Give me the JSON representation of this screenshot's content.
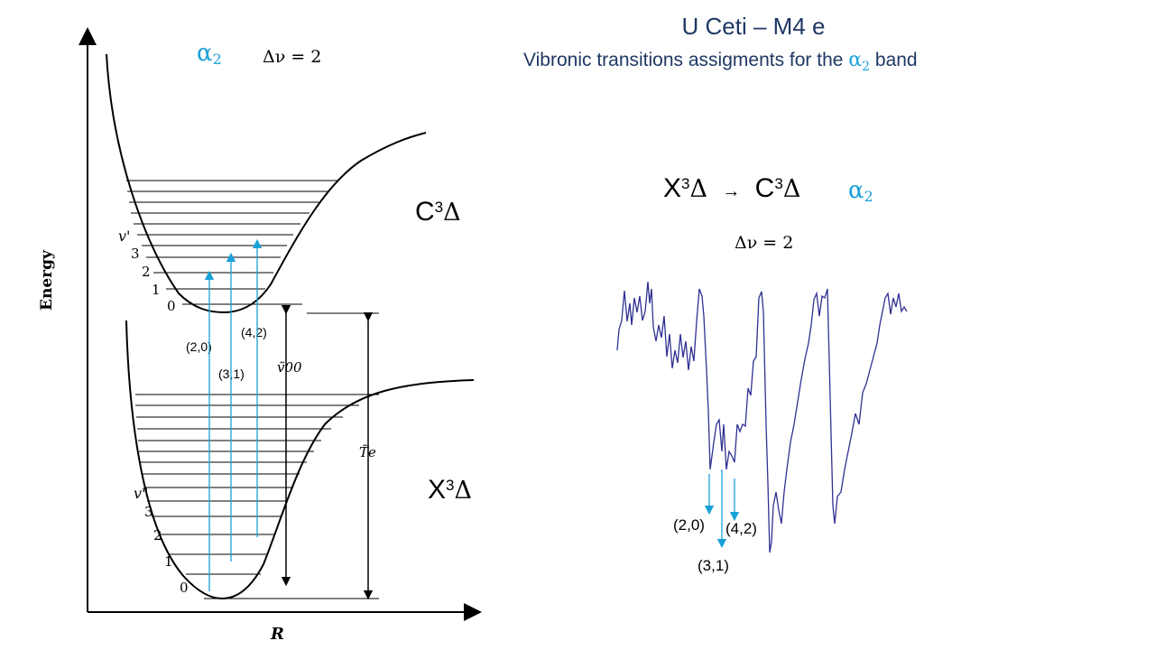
{
  "header": {
    "title": "U Ceti – M4 e",
    "subtitle_pre": "Vibronic transitions assigments for the ",
    "subtitle_alpha": "α",
    "subtitle_sub": "2",
    "subtitle_post": " band"
  },
  "left_diagram": {
    "alpha": "α",
    "alpha_sub": "2",
    "delta_v": "Δν = 2",
    "upper_state": {
      "letter": "C",
      "sup": "3",
      "delta": "Δ"
    },
    "lower_state": {
      "letter": "X",
      "sup": "3",
      "delta": "Δ"
    },
    "y_axis_label": "Energy",
    "x_axis_label": "R",
    "upper_v_label": "v'",
    "lower_v_label": "v\"",
    "upper_levels": [
      "3",
      "2",
      "1",
      "0"
    ],
    "lower_levels": [
      "3",
      "2",
      "1",
      "0"
    ],
    "v00_label": "ṽ00",
    "te_label": "T̃e",
    "transitions": [
      "(2,0)",
      "(3,1)",
      "(4,2)"
    ]
  },
  "right_panel": {
    "band_lower": {
      "letter": "X",
      "sup": "3",
      "delta": "Δ"
    },
    "arrow": "→",
    "band_upper": {
      "letter": "C",
      "sup": "3",
      "delta": "Δ"
    },
    "alpha": "α",
    "alpha_sub": "2",
    "delta_v": "Δν = 2",
    "spectrum_labels": [
      "(2,0)",
      "(3,1)",
      "(4,2)"
    ]
  },
  "colors": {
    "title": "#1f3864",
    "accent": "#1aa0d8",
    "spectrum": "#2e3192"
  }
}
